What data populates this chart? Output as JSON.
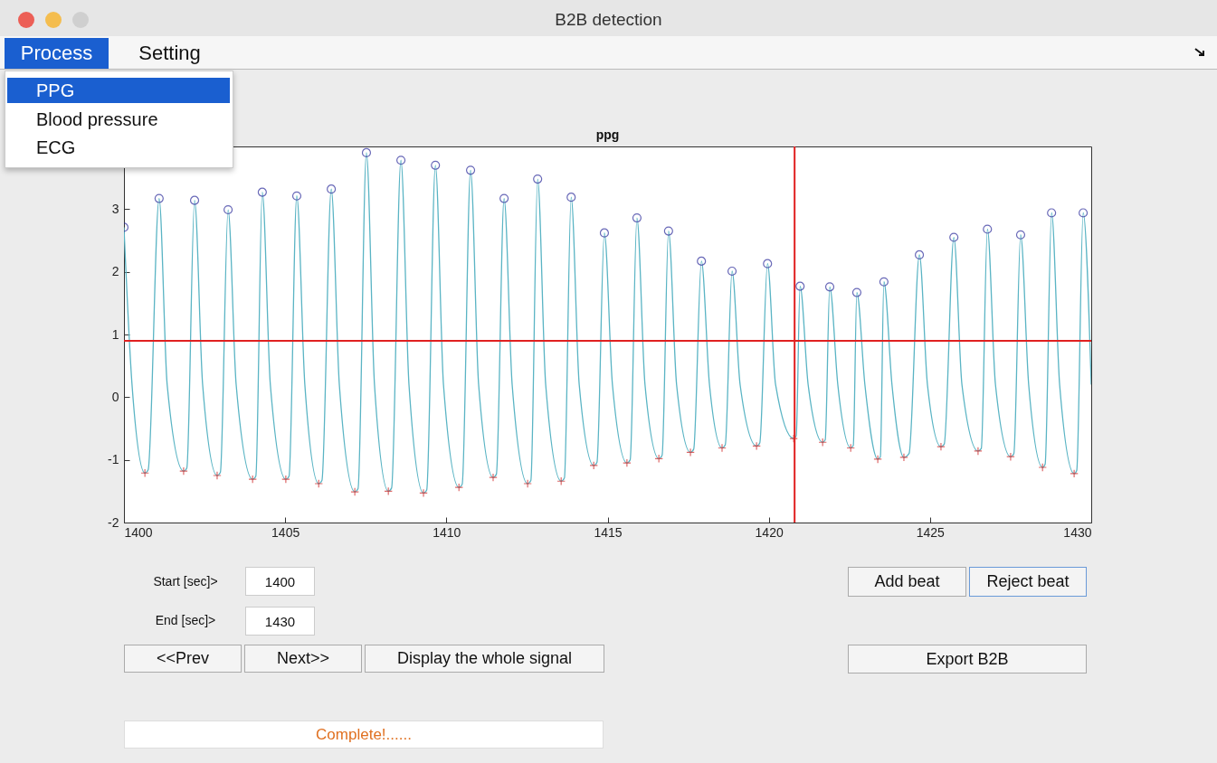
{
  "chart_data": {
    "type": "line",
    "title": "ppg",
    "xlim": [
      1400,
      1430
    ],
    "xticks": [
      1400,
      1405,
      1410,
      1415,
      1420,
      1425,
      1430
    ],
    "ylim": [
      -2,
      4
    ],
    "yticks": [
      -2,
      -1,
      0,
      1,
      2,
      3,
      {
        "value": 4,
        "label": null
      }
    ],
    "series": [
      {
        "marker": "none",
        "color": "#5ab4c4",
        "x": [
          1400.0,
          1400.25,
          1400.65,
          1400.75,
          1401.09,
          1401.34,
          1401.85,
          1401.95,
          1402.19,
          1402.44,
          1402.89,
          1402.99,
          1403.23,
          1403.48,
          1403.99,
          1404.09,
          1404.29,
          1404.54,
          1405.02,
          1405.12,
          1405.36,
          1405.61,
          1406.04,
          1406.14,
          1406.43,
          1406.68,
          1407.16,
          1407.26,
          1407.52,
          1407.77,
          1408.2,
          1408.3,
          1408.59,
          1408.84,
          1409.29,
          1409.39,
          1409.66,
          1409.91,
          1410.39,
          1410.49,
          1410.75,
          1411.0,
          1411.45,
          1411.55,
          1411.79,
          1412.04,
          1412.52,
          1412.62,
          1412.83,
          1413.08,
          1413.56,
          1413.66,
          1413.87,
          1414.12,
          1414.57,
          1414.67,
          1414.9,
          1415.15,
          1415.6,
          1415.7,
          1415.91,
          1416.16,
          1416.59,
          1416.69,
          1416.89,
          1417.14,
          1417.57,
          1417.67,
          1417.91,
          1418.16,
          1418.55,
          1418.65,
          1418.86,
          1419.11,
          1419.62,
          1419.72,
          1419.96,
          1420.21,
          1420.77,
          1420.85,
          1420.97,
          1421.22,
          1421.67,
          1421.75,
          1421.89,
          1422.14,
          1422.54,
          1422.62,
          1422.73,
          1422.98,
          1423.38,
          1423.46,
          1423.57,
          1423.82,
          1424.19,
          1424.35,
          1424.67,
          1424.92,
          1425.34,
          1425.44,
          1425.74,
          1425.99,
          1426.49,
          1426.59,
          1426.78,
          1427.03,
          1427.5,
          1427.6,
          1427.81,
          1428.06,
          1428.49,
          1428.57,
          1428.77,
          1429.02,
          1429.47,
          1429.55,
          1429.75,
          1430.0
        ],
        "values": [
          2.71,
          0.2,
          -1.21,
          -1.16,
          3.17,
          0.2,
          -1.18,
          -1.13,
          3.14,
          0.2,
          -1.25,
          -1.2,
          2.99,
          0.2,
          -1.31,
          -1.26,
          3.27,
          0.2,
          -1.31,
          -1.26,
          3.21,
          0.2,
          -1.38,
          -1.33,
          3.32,
          0.2,
          -1.51,
          -1.46,
          3.9,
          0.2,
          -1.5,
          -1.45,
          3.78,
          0.2,
          -1.53,
          -1.48,
          3.7,
          0.2,
          -1.44,
          -1.39,
          3.62,
          0.2,
          -1.28,
          -1.23,
          3.17,
          0.2,
          -1.38,
          -1.33,
          3.48,
          0.2,
          -1.34,
          -1.29,
          3.19,
          0.2,
          -1.09,
          -1.04,
          2.62,
          0.2,
          -1.05,
          -1.0,
          2.86,
          0.2,
          -0.98,
          -0.93,
          2.65,
          0.2,
          -0.88,
          -0.83,
          2.17,
          0.2,
          -0.81,
          -0.76,
          2.01,
          0.2,
          -0.78,
          -0.73,
          2.13,
          0.2,
          -0.66,
          -0.62,
          1.77,
          0.2,
          -0.72,
          -0.68,
          1.76,
          0.2,
          -0.81,
          -0.77,
          1.67,
          0.2,
          -0.99,
          -0.95,
          1.84,
          0.2,
          -0.96,
          -0.9,
          2.27,
          0.2,
          -0.79,
          -0.75,
          2.55,
          0.2,
          -0.86,
          -0.82,
          2.68,
          0.2,
          -0.95,
          -0.9,
          2.59,
          0.2,
          -1.12,
          -1.07,
          2.94,
          0.2,
          -1.22,
          -1.17,
          2.94,
          0.2
        ]
      },
      {
        "type": "scatter",
        "marker": "circle",
        "color": "#2a2a9a",
        "x": [
          1400.0,
          1401.09,
          1402.19,
          1403.23,
          1404.29,
          1405.36,
          1406.43,
          1407.52,
          1408.59,
          1409.66,
          1410.75,
          1411.79,
          1412.83,
          1413.87,
          1414.9,
          1415.91,
          1416.89,
          1417.91,
          1418.86,
          1419.96,
          1420.97,
          1421.89,
          1422.73,
          1423.57,
          1424.67,
          1425.74,
          1426.78,
          1427.81,
          1428.77,
          1429.75
        ],
        "values": [
          2.71,
          3.17,
          3.14,
          2.99,
          3.27,
          3.21,
          3.32,
          3.9,
          3.78,
          3.7,
          3.62,
          3.17,
          3.48,
          3.19,
          2.62,
          2.86,
          2.65,
          2.17,
          2.01,
          2.13,
          1.77,
          1.76,
          1.67,
          1.84,
          2.27,
          2.55,
          2.68,
          2.59,
          2.94,
          2.94
        ]
      },
      {
        "type": "scatter",
        "marker": "cross",
        "color": "#d02a2a",
        "x": [
          1400.65,
          1401.85,
          1402.89,
          1403.99,
          1405.02,
          1406.04,
          1407.16,
          1408.2,
          1409.29,
          1410.39,
          1411.45,
          1412.52,
          1413.56,
          1414.57,
          1415.6,
          1416.59,
          1417.57,
          1418.55,
          1419.62,
          1420.77,
          1421.67,
          1422.54,
          1423.38,
          1424.19,
          1425.34,
          1426.49,
          1427.5,
          1428.49,
          1429.47
        ],
        "values": [
          -1.21,
          -1.18,
          -1.25,
          -1.31,
          -1.31,
          -1.38,
          -1.51,
          -1.5,
          -1.53,
          -1.44,
          -1.28,
          -1.38,
          -1.34,
          -1.09,
          -1.05,
          -0.98,
          -0.88,
          -0.81,
          -0.78,
          -0.66,
          -0.72,
          -0.81,
          -0.99,
          -0.96,
          -0.79,
          -0.86,
          -0.95,
          -1.12,
          -1.22
        ]
      }
    ],
    "ref_lines": [
      {
        "axis": "x",
        "value": 1420.8,
        "color": "#e02020"
      },
      {
        "axis": "y",
        "value": 0.9,
        "color": "#e02020"
      }
    ],
    "annotations": [
      "B2B detection",
      "Process",
      "Setting",
      "PPG",
      "Blood pressure",
      "ECG",
      "Start [sec]>",
      "1400",
      "End [sec]>",
      "1430",
      "<<Prev",
      "Next>>",
      "Display the whole signal",
      "Add beat",
      "Reject beat",
      "Export B2B",
      "Complete!......"
    ]
  }
}
